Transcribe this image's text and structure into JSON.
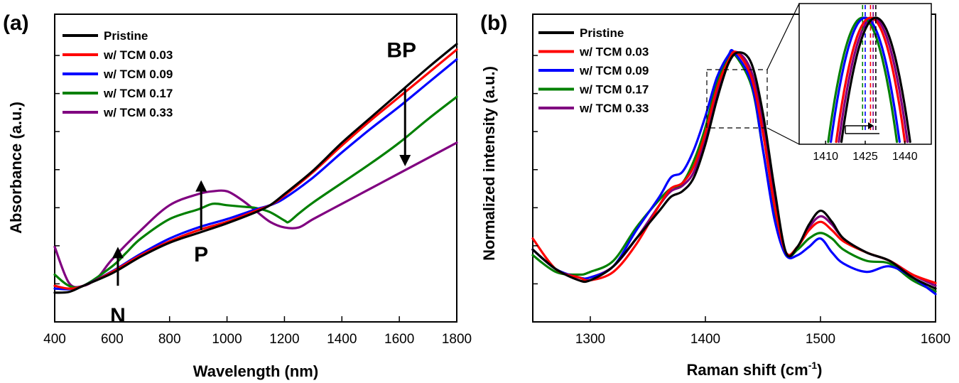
{
  "chart_data": [
    {
      "type": "line",
      "panel_label": "(a)",
      "title": "",
      "xlabel": "Wavelength (nm)",
      "ylabel": "Absorbance (a.u.)",
      "xlim": [
        400,
        1800
      ],
      "ylim": [
        0,
        1
      ],
      "xticks": [
        400,
        600,
        800,
        1000,
        1200,
        1400,
        1600,
        1800
      ],
      "y_tick_labels_shown": false,
      "grid": false,
      "legend_position": "top-left",
      "series": [
        {
          "name": "Pristine",
          "color": "#000000",
          "x": [
            400,
            450,
            500,
            600,
            700,
            800,
            900,
            1000,
            1100,
            1150,
            1200,
            1300,
            1400,
            1500,
            1600,
            1700,
            1800
          ],
          "y": [
            0.105,
            0.108,
            0.13,
            0.175,
            0.235,
            0.285,
            0.32,
            0.355,
            0.395,
            0.42,
            0.46,
            0.545,
            0.645,
            0.735,
            0.825,
            0.915,
            1.0
          ]
        },
        {
          "name": "w/ TCM 0.03",
          "color": "#ff0000",
          "x": [
            400,
            450,
            500,
            600,
            700,
            800,
            900,
            1000,
            1100,
            1150,
            1200,
            1300,
            1400,
            1500,
            1600,
            1700,
            1800
          ],
          "y": [
            0.13,
            0.12,
            0.13,
            0.18,
            0.24,
            0.29,
            0.33,
            0.36,
            0.4,
            0.42,
            0.455,
            0.54,
            0.635,
            0.725,
            0.81,
            0.895,
            0.98
          ]
        },
        {
          "name": "w/ TCM 0.09",
          "color": "#0000ff",
          "x": [
            400,
            450,
            500,
            600,
            700,
            800,
            900,
            1000,
            1100,
            1150,
            1200,
            1300,
            1400,
            1500,
            1600,
            1700,
            1800
          ],
          "y": [
            0.12,
            0.118,
            0.13,
            0.182,
            0.245,
            0.3,
            0.34,
            0.37,
            0.405,
            0.42,
            0.445,
            0.52,
            0.61,
            0.695,
            0.775,
            0.86,
            0.945
          ]
        },
        {
          "name": "w/ TCM 0.17",
          "color": "#008000",
          "x": [
            400,
            450,
            500,
            600,
            650,
            700,
            800,
            900,
            950,
            1000,
            1050,
            1100,
            1150,
            1200,
            1215,
            1250,
            1300,
            1400,
            1500,
            1600,
            1700,
            1800
          ],
          "y": [
            0.17,
            0.13,
            0.13,
            0.2,
            0.25,
            0.3,
            0.37,
            0.405,
            0.425,
            0.42,
            0.415,
            0.41,
            0.395,
            0.365,
            0.36,
            0.39,
            0.43,
            0.5,
            0.57,
            0.645,
            0.73,
            0.81
          ]
        },
        {
          "name": "w/ TCM 0.33",
          "color": "#800080",
          "x": [
            400,
            450,
            500,
            550,
            600,
            700,
            800,
            900,
            950,
            1000,
            1050,
            1100,
            1150,
            1200,
            1250,
            1300,
            1400,
            1500,
            1600,
            1700,
            1800
          ],
          "y": [
            0.27,
            0.14,
            0.13,
            0.16,
            0.225,
            0.33,
            0.42,
            0.46,
            0.47,
            0.47,
            0.44,
            0.4,
            0.36,
            0.34,
            0.34,
            0.37,
            0.425,
            0.48,
            0.535,
            0.59,
            0.645
          ]
        }
      ],
      "annotations": [
        {
          "text": "N",
          "arrow": "up",
          "x": 620
        },
        {
          "text": "P",
          "arrow": "up",
          "x": 910
        },
        {
          "text": "BP",
          "arrow": "down",
          "x": 1620
        }
      ]
    },
    {
      "type": "line",
      "panel_label": "(b)",
      "title": "",
      "xlabel": "Raman shift (cm",
      "xlabel_superscript": "-1",
      "xlabel_suffix": ")",
      "ylabel": "Normalized intensity (a.u.)",
      "xlim": [
        1250,
        1600
      ],
      "ylim": [
        0,
        1
      ],
      "xticks": [
        1300,
        1400,
        1500,
        1600
      ],
      "y_tick_labels_shown": false,
      "grid": false,
      "legend_position": "top-left",
      "series": [
        {
          "name": "Pristine",
          "color": "#000000",
          "peak": 1429,
          "x": [
            1250,
            1270,
            1290,
            1300,
            1320,
            1340,
            1360,
            1370,
            1380,
            1390,
            1400,
            1410,
            1420,
            1429,
            1440,
            1450,
            1460,
            1470,
            1480,
            1490,
            1500,
            1510,
            1520,
            1540,
            1560,
            1580,
            1600
          ],
          "y": [
            0.26,
            0.19,
            0.15,
            0.15,
            0.2,
            0.3,
            0.4,
            0.45,
            0.47,
            0.52,
            0.64,
            0.8,
            0.93,
            0.97,
            0.93,
            0.75,
            0.48,
            0.25,
            0.27,
            0.35,
            0.4,
            0.36,
            0.3,
            0.25,
            0.22,
            0.16,
            0.12
          ]
        },
        {
          "name": "w/ TCM 0.03",
          "color": "#ff0000",
          "peak": 1427,
          "x": [
            1250,
            1270,
            1290,
            1300,
            1320,
            1340,
            1360,
            1370,
            1380,
            1390,
            1400,
            1410,
            1420,
            1427,
            1440,
            1450,
            1460,
            1470,
            1480,
            1490,
            1500,
            1510,
            1520,
            1540,
            1560,
            1580,
            1600
          ],
          "y": [
            0.3,
            0.19,
            0.16,
            0.15,
            0.18,
            0.28,
            0.42,
            0.48,
            0.5,
            0.56,
            0.68,
            0.84,
            0.94,
            0.97,
            0.88,
            0.68,
            0.42,
            0.25,
            0.27,
            0.33,
            0.36,
            0.33,
            0.29,
            0.25,
            0.22,
            0.17,
            0.14
          ]
        },
        {
          "name": "w/ TCM 0.09",
          "color": "#0000ff",
          "peak": 1425,
          "x": [
            1250,
            1270,
            1290,
            1300,
            1320,
            1340,
            1360,
            1370,
            1380,
            1390,
            1400,
            1410,
            1420,
            1425,
            1440,
            1450,
            1460,
            1470,
            1480,
            1490,
            1500,
            1510,
            1520,
            1540,
            1560,
            1580,
            1600
          ],
          "y": [
            0.26,
            0.19,
            0.16,
            0.16,
            0.2,
            0.33,
            0.45,
            0.52,
            0.54,
            0.62,
            0.74,
            0.88,
            0.96,
            0.97,
            0.86,
            0.62,
            0.37,
            0.24,
            0.24,
            0.27,
            0.3,
            0.25,
            0.21,
            0.18,
            0.2,
            0.16,
            0.1
          ]
        },
        {
          "name": "w/ TCM 0.17",
          "color": "#008000",
          "peak": 1424,
          "x": [
            1250,
            1270,
            1290,
            1300,
            1320,
            1340,
            1360,
            1370,
            1380,
            1390,
            1400,
            1410,
            1420,
            1424,
            1440,
            1450,
            1460,
            1470,
            1480,
            1490,
            1500,
            1510,
            1520,
            1540,
            1560,
            1580,
            1600
          ],
          "y": [
            0.24,
            0.18,
            0.17,
            0.18,
            0.22,
            0.34,
            0.44,
            0.48,
            0.5,
            0.58,
            0.7,
            0.86,
            0.95,
            0.97,
            0.85,
            0.62,
            0.38,
            0.24,
            0.26,
            0.3,
            0.32,
            0.3,
            0.26,
            0.22,
            0.21,
            0.15,
            0.11
          ]
        },
        {
          "name": "w/ TCM 0.33",
          "color": "#800080",
          "peak": 1428,
          "x": [
            1250,
            1270,
            1290,
            1300,
            1320,
            1340,
            1360,
            1370,
            1380,
            1390,
            1400,
            1410,
            1420,
            1428,
            1440,
            1450,
            1460,
            1470,
            1480,
            1490,
            1500,
            1510,
            1520,
            1540,
            1560,
            1580,
            1600
          ],
          "y": [
            0.26,
            0.19,
            0.16,
            0.16,
            0.2,
            0.3,
            0.42,
            0.47,
            0.49,
            0.54,
            0.66,
            0.82,
            0.94,
            0.97,
            0.9,
            0.71,
            0.45,
            0.25,
            0.27,
            0.34,
            0.38,
            0.35,
            0.3,
            0.25,
            0.22,
            0.17,
            0.13
          ]
        }
      ],
      "inset": {
        "xlim": [
          1400,
          1450
        ],
        "xticks": [
          1410,
          1425,
          1440
        ],
        "ylim": [
          0.7,
          1.0
        ],
        "shift_arrow": "right"
      }
    }
  ]
}
